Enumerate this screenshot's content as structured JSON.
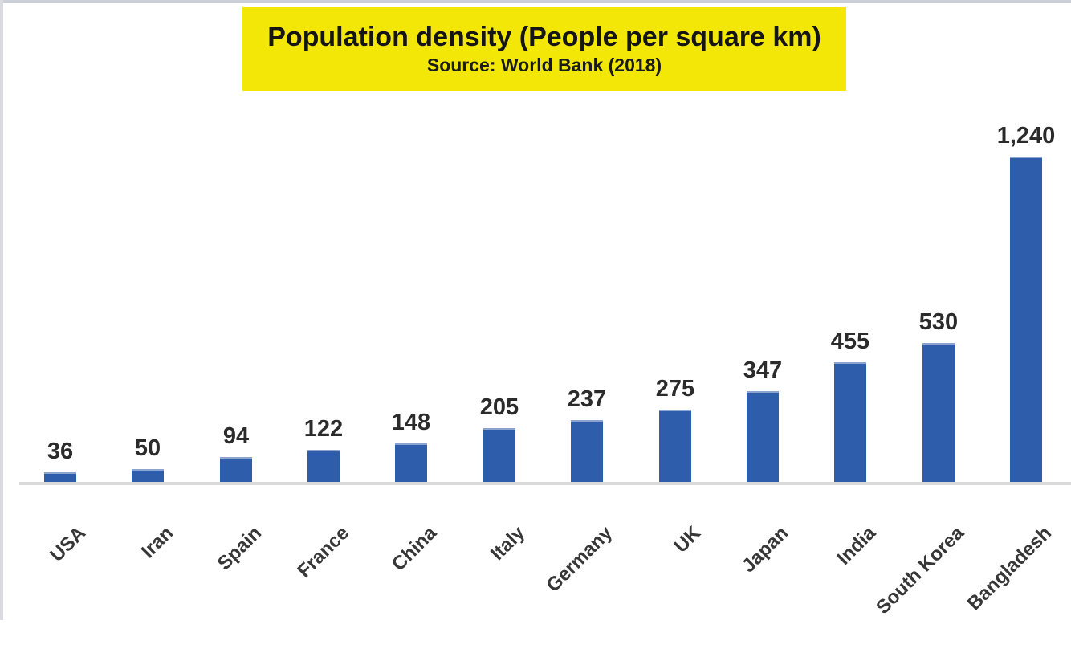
{
  "title": {
    "line1": "Population density (People per square km)",
    "line2": "Source: World Bank (2018)"
  },
  "colors": {
    "bar": "#2e5eab",
    "title_background": "#f3e707",
    "axis_line": "#d9d9d9",
    "value_label_text": "#2b2b2b",
    "category_label_text": "#373737"
  },
  "chart_data": {
    "type": "bar",
    "title": "Population density (People per square km)",
    "subtitle": "Source: World Bank (2018)",
    "categories": [
      "USA",
      "Iran",
      "Spain",
      "France",
      "China",
      "Italy",
      "Germany",
      "UK",
      "Japan",
      "India",
      "South Korea",
      "Bangladesh"
    ],
    "values": [
      36,
      50,
      94,
      122,
      148,
      205,
      237,
      275,
      347,
      455,
      530,
      1240
    ],
    "value_labels": [
      "36",
      "50",
      "94",
      "122",
      "148",
      "205",
      "237",
      "275",
      "347",
      "455",
      "530",
      "1,240"
    ],
    "xlabel": "",
    "ylabel": "",
    "ylim": [
      0,
      1300
    ],
    "grid": false,
    "legend": false,
    "bar_color": "#2e5eab",
    "data_labels": "above bars",
    "category_label_rotation_deg": 45
  }
}
